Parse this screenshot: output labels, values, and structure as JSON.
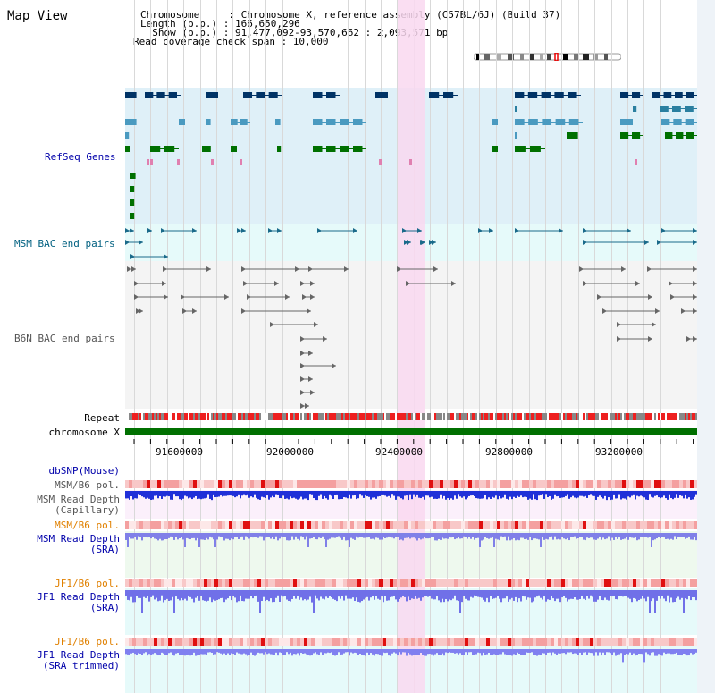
{
  "title": "Map View",
  "header": {
    "line1": "Chromosome     : Chromosome X, reference assembly (C57BL/6J) (Build 37)",
    "line2": "Length (b.p.) : 166,650,296",
    "line3": "  Show (b.p.) : 91,477,092-93,570,662 : 2,093,571 bp",
    "line4": "Read coverage check span : 10,000"
  },
  "tracks": {
    "refseq": "RefSeq Genes",
    "msm_bac": "MSM BAC end pairs",
    "b6n_bac": "B6N BAC end pairs",
    "repeat": "Repeat",
    "chromosome": "chromosome X",
    "dbsnp": "dbSNP(Mouse)",
    "msm_b6_pol_cap": "MSM/B6 pol.",
    "msm_depth_cap": "MSM Read Depth",
    "msm_depth_cap_sub": "(Capillary)",
    "msm_b6_pol_sra": "MSM/B6 pol.",
    "msm_depth_sra": "MSM Read Depth",
    "msm_depth_sra_sub": "(SRA)",
    "jf1_b6_pol": "JF1/B6 pol.",
    "jf1_depth": "JF1 Read Depth",
    "jf1_depth_sub": "(SRA)",
    "jf1_b6_pol_trim": "JF1/B6 pol.",
    "jf1_depth_trim": "JF1 Read Depth",
    "jf1_depth_trim_sub": "(SRA trimmed)"
  },
  "axis_ticks": [
    "91600000",
    "92000000",
    "92400000",
    "92800000",
    "93200000"
  ],
  "colors": {
    "refseq_bg": "#dff0f8",
    "bac_bg": "#e6fafa",
    "highlight": "#f9d8f0",
    "chromosome": "#007000",
    "label_blue": "#0000aa",
    "label_teal": "#006080",
    "label_orange": "#e08000",
    "label_gray": "#555555"
  }
}
